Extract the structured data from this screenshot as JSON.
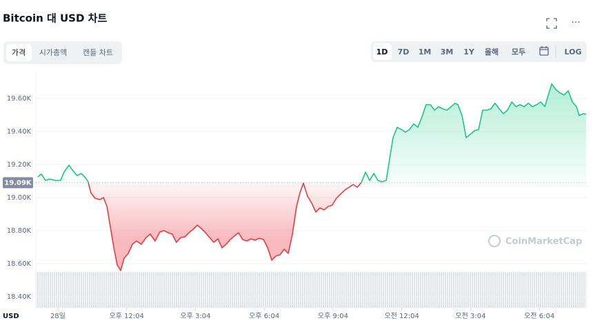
{
  "ui": {
    "tabs": [
      "가격",
      "시가총액",
      "캔들 차트"
    ],
    "ranges": [
      "1D",
      "7D",
      "1M",
      "3M",
      "1Y",
      "올해",
      "모두"
    ],
    "log": "LOG",
    "currency": "USD",
    "watermark": "CoinMarketCap"
  },
  "chart_data": {
    "type": "line",
    "title": "Bitcoin 대 USD 차트",
    "x": [
      -0.87,
      -0.72,
      -0.54,
      -0.36,
      -0.12,
      0.12,
      0.27,
      0.48,
      0.66,
      0.84,
      1.02,
      1.2,
      1.32,
      1.44,
      1.62,
      1.83,
      1.99,
      2.14,
      2.29,
      2.44,
      2.59,
      2.74,
      2.89,
      3.07,
      3.25,
      3.43,
      3.64,
      3.85,
      4.03,
      4.24,
      4.45,
      4.63,
      4.81,
      4.99,
      5.17,
      5.36,
      5.54,
      5.72,
      5.9,
      6.08,
      6.26,
      6.44,
      6.62,
      6.8,
      6.98,
      7.16,
      7.34,
      7.52,
      7.7,
      7.88,
      8.06,
      8.24,
      8.42,
      8.6,
      8.78,
      8.97,
      9.15,
      9.33,
      9.51,
      9.69,
      9.87,
      10.05,
      10.23,
      10.41,
      10.56,
      10.71,
      10.89,
      11.07,
      11.25,
      11.43,
      11.61,
      11.79,
      11.97,
      12.15,
      12.33,
      12.52,
      12.7,
      12.88,
      13.06,
      13.24,
      13.42,
      13.6,
      13.78,
      13.96,
      14.14,
      14.32,
      14.5,
      14.62,
      14.8,
      14.98,
      15.16,
      15.34,
      15.52,
      15.7,
      15.88,
      16.06,
      16.25,
      16.43,
      16.61,
      16.79,
      16.97,
      17.15,
      17.33,
      17.45,
      17.63,
      17.81,
      17.99,
      18.17,
      18.35,
      18.53,
      18.71,
      18.89,
      19.07,
      19.25,
      19.43,
      19.61,
      19.8,
      19.98,
      20.16,
      20.34,
      20.52,
      20.7,
      20.88,
      21.06,
      21.24,
      21.42,
      21.54,
      21.72,
      21.9,
      22.08,
      22.26,
      22.44,
      22.62,
      22.74,
      22.92,
      23.04
    ],
    "values": [
      19125,
      19142,
      19104,
      19112,
      19104,
      19104,
      19154,
      19196,
      19162,
      19133,
      19146,
      19121,
      19096,
      19029,
      18996,
      18987,
      19000,
      18946,
      18821,
      18696,
      18592,
      18558,
      18633,
      18662,
      18717,
      18737,
      18717,
      18758,
      18779,
      18737,
      18792,
      18800,
      18787,
      18779,
      18729,
      18758,
      18762,
      18787,
      18808,
      18833,
      18812,
      18787,
      18758,
      18729,
      18750,
      18696,
      18717,
      18746,
      18767,
      18787,
      18746,
      18737,
      18750,
      18742,
      18754,
      18746,
      18696,
      18621,
      18646,
      18654,
      18687,
      18662,
      18779,
      18946,
      19029,
      19087,
      19008,
      18967,
      18912,
      18937,
      18925,
      18946,
      18954,
      18996,
      19021,
      19046,
      19062,
      19079,
      19062,
      19092,
      19154,
      19104,
      19146,
      19104,
      19096,
      19104,
      19258,
      19362,
      19425,
      19412,
      19396,
      19412,
      19446,
      19425,
      19487,
      19562,
      19562,
      19529,
      19550,
      19537,
      19529,
      19550,
      19571,
      19562,
      19496,
      19362,
      19383,
      19404,
      19412,
      19529,
      19529,
      19537,
      19571,
      19537,
      19508,
      19529,
      19579,
      19550,
      19562,
      19550,
      19571,
      19550,
      19562,
      19579,
      19550,
      19633,
      19688,
      19654,
      19633,
      19621,
      19646,
      19579,
      19550,
      19496,
      19508,
      19504
    ],
    "baseline": {
      "value": 19090,
      "label": "19.09K"
    },
    "colors": {
      "above": "#16c784",
      "below": "#ea3943"
    },
    "xlim": [
      -0.96,
      23.04
    ],
    "xticks": [
      {
        "value": 0,
        "label": "28일"
      },
      {
        "value": 3,
        "label": "오후 12:04"
      },
      {
        "value": 6,
        "label": "오후 3:04"
      },
      {
        "value": 9,
        "label": "오후 6:04"
      },
      {
        "value": 12,
        "label": "오후 9:04"
      },
      {
        "value": 15,
        "label": "오전 12:04"
      },
      {
        "value": 18,
        "label": "오전 3:04"
      },
      {
        "value": 21,
        "label": "오전 6:04"
      }
    ],
    "ylim": [
      18333,
      19758
    ],
    "yticks": [
      {
        "value": 18400,
        "label": "18.40K"
      },
      {
        "value": 18600,
        "label": "18.60K"
      },
      {
        "value": 18800,
        "label": "18.80K"
      },
      {
        "value": 19000,
        "label": "19.00K"
      },
      {
        "value": 19200,
        "label": "19.20K"
      },
      {
        "value": 19400,
        "label": "19.40K"
      },
      {
        "value": 19600,
        "label": "19.60K"
      }
    ],
    "grid": true
  }
}
